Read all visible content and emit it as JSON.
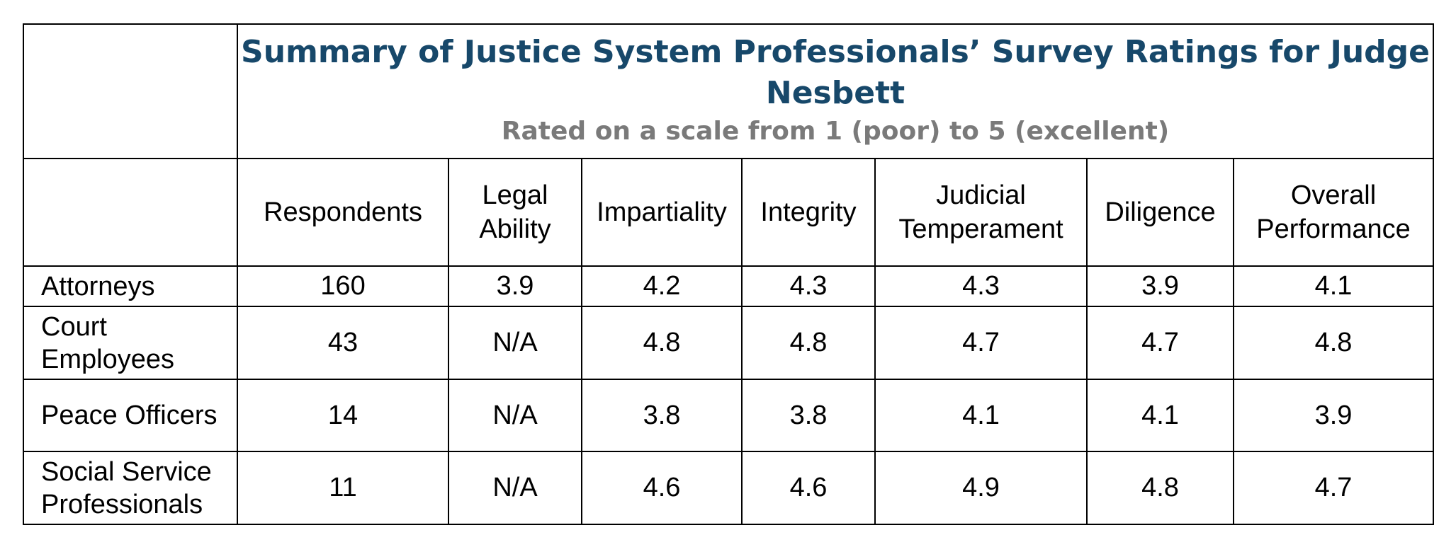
{
  "title": "Summary of Justice System Professionals’ Survey Ratings for Judge Nesbett",
  "subtitle": "Rated on a scale from 1 (poor) to 5 (excellent)",
  "columns": [
    "Respondents",
    "Legal Ability",
    "Impartiality",
    "Integrity",
    "Judicial Temperament",
    "Diligence",
    "Overall Performance"
  ],
  "rows": [
    {
      "label": "Attorneys",
      "values": [
        "160",
        "3.9",
        "4.2",
        "4.3",
        "4.3",
        "3.9",
        "4.1"
      ]
    },
    {
      "label": "Court Employees",
      "values": [
        "43",
        "N/A",
        "4.8",
        "4.8",
        "4.7",
        "4.7",
        "4.8"
      ]
    },
    {
      "label": "Peace Officers",
      "values": [
        "14",
        "N/A",
        "3.8",
        "3.8",
        "4.1",
        "4.1",
        "3.9"
      ]
    },
    {
      "label": "Social Service Professionals",
      "values": [
        "11",
        "N/A",
        "4.6",
        "4.6",
        "4.9",
        "4.8",
        "4.7"
      ]
    }
  ],
  "colors": {
    "title": "#17486a",
    "subtitle": "#7a7a7a",
    "border": "#000000"
  }
}
